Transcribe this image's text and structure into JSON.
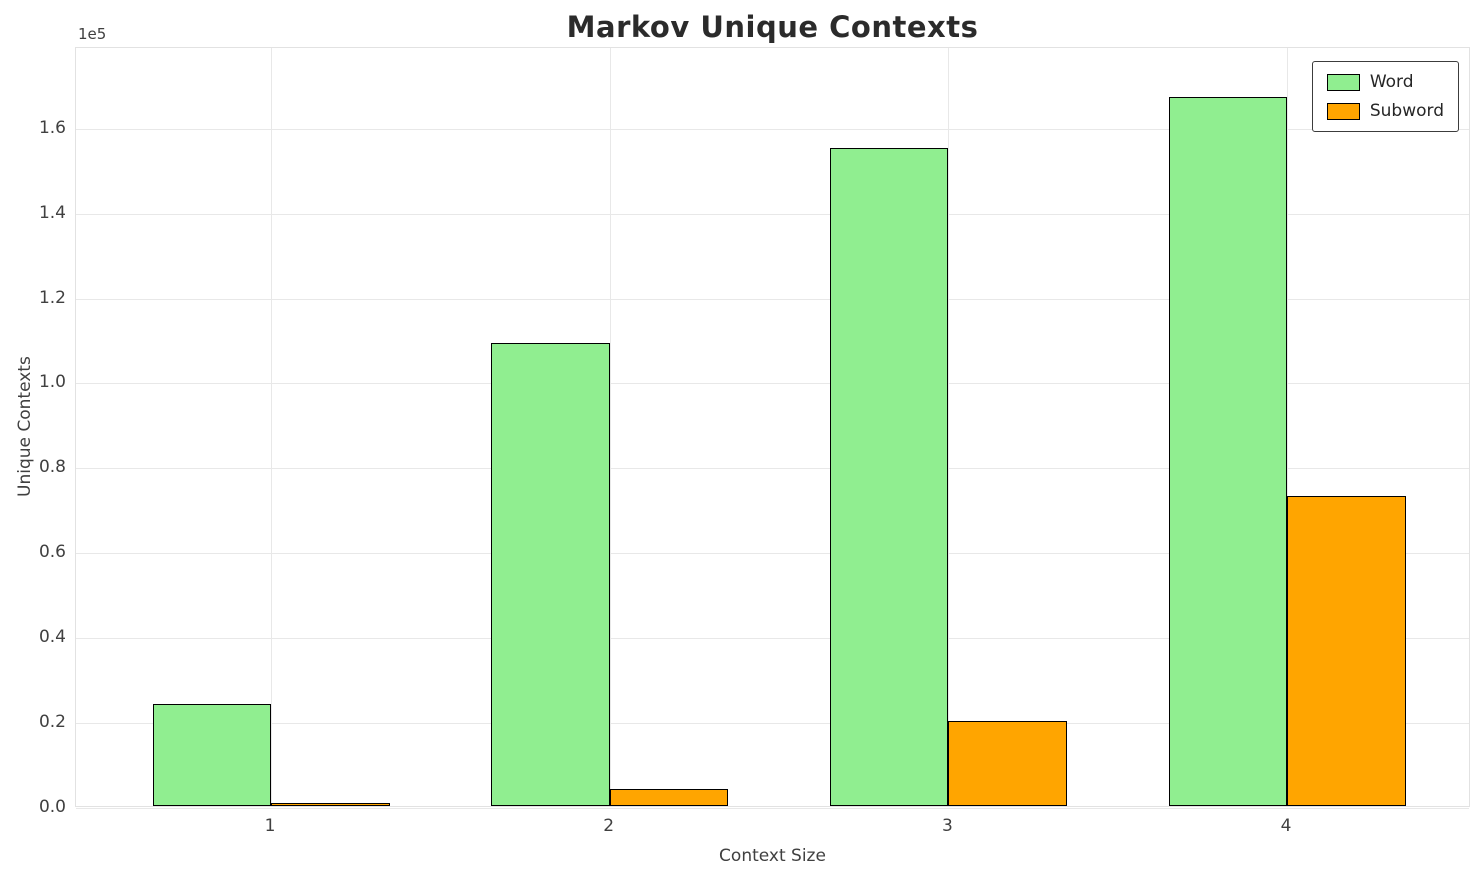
{
  "chart_data": {
    "type": "bar",
    "title": "Markov Unique Contexts",
    "xlabel": "Context Size",
    "ylabel": "Unique Contexts",
    "scale_label": "1e5",
    "categories": [
      "1",
      "2",
      "3",
      "4"
    ],
    "series": [
      {
        "name": "Word",
        "color": "#90EE90",
        "values": [
          24000,
          109000,
          155000,
          167000
        ]
      },
      {
        "name": "Subword",
        "color": "#FFA500",
        "values": [
          600,
          4000,
          20000,
          73000
        ]
      }
    ],
    "ylim": [
      0,
      179000
    ],
    "yticks": [
      0,
      20000,
      40000,
      60000,
      80000,
      100000,
      120000,
      140000,
      160000
    ],
    "ytick_labels": [
      "0.0",
      "0.2",
      "0.4",
      "0.6",
      "0.8",
      "1.0",
      "1.2",
      "1.4",
      "1.6"
    ],
    "grid": true,
    "legend_position": "upper right",
    "bar_edge_color": "#000000",
    "grid_color": "#e8e8e8"
  }
}
